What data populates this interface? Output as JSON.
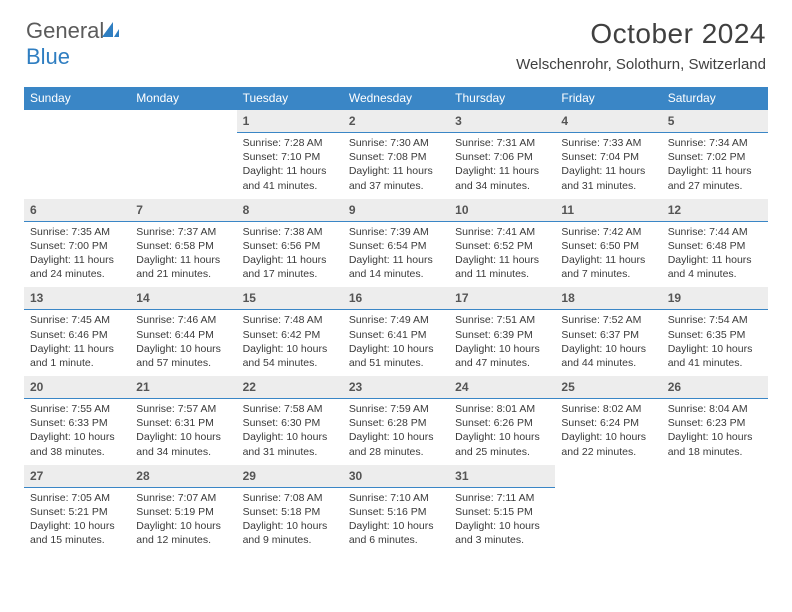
{
  "logo": {
    "text_general": "General",
    "text_blue": "Blue"
  },
  "title": "October 2024",
  "location": "Welschenrohr, Solothurn, Switzerland",
  "colors": {
    "header_bg": "#3a86c6",
    "header_text": "#ffffff",
    "daynum_bg": "#ededed",
    "daynum_border": "#3a86c6",
    "body_text": "#3a3a3a",
    "logo_gray": "#5b5b5b",
    "logo_blue": "#2f7ec1",
    "page_bg": "#ffffff"
  },
  "day_names": [
    "Sunday",
    "Monday",
    "Tuesday",
    "Wednesday",
    "Thursday",
    "Friday",
    "Saturday"
  ],
  "weeks": [
    [
      null,
      null,
      {
        "n": "1",
        "sr": "Sunrise: 7:28 AM",
        "ss": "Sunset: 7:10 PM",
        "dl": "Daylight: 11 hours and 41 minutes."
      },
      {
        "n": "2",
        "sr": "Sunrise: 7:30 AM",
        "ss": "Sunset: 7:08 PM",
        "dl": "Daylight: 11 hours and 37 minutes."
      },
      {
        "n": "3",
        "sr": "Sunrise: 7:31 AM",
        "ss": "Sunset: 7:06 PM",
        "dl": "Daylight: 11 hours and 34 minutes."
      },
      {
        "n": "4",
        "sr": "Sunrise: 7:33 AM",
        "ss": "Sunset: 7:04 PM",
        "dl": "Daylight: 11 hours and 31 minutes."
      },
      {
        "n": "5",
        "sr": "Sunrise: 7:34 AM",
        "ss": "Sunset: 7:02 PM",
        "dl": "Daylight: 11 hours and 27 minutes."
      }
    ],
    [
      {
        "n": "6",
        "sr": "Sunrise: 7:35 AM",
        "ss": "Sunset: 7:00 PM",
        "dl": "Daylight: 11 hours and 24 minutes."
      },
      {
        "n": "7",
        "sr": "Sunrise: 7:37 AM",
        "ss": "Sunset: 6:58 PM",
        "dl": "Daylight: 11 hours and 21 minutes."
      },
      {
        "n": "8",
        "sr": "Sunrise: 7:38 AM",
        "ss": "Sunset: 6:56 PM",
        "dl": "Daylight: 11 hours and 17 minutes."
      },
      {
        "n": "9",
        "sr": "Sunrise: 7:39 AM",
        "ss": "Sunset: 6:54 PM",
        "dl": "Daylight: 11 hours and 14 minutes."
      },
      {
        "n": "10",
        "sr": "Sunrise: 7:41 AM",
        "ss": "Sunset: 6:52 PM",
        "dl": "Daylight: 11 hours and 11 minutes."
      },
      {
        "n": "11",
        "sr": "Sunrise: 7:42 AM",
        "ss": "Sunset: 6:50 PM",
        "dl": "Daylight: 11 hours and 7 minutes."
      },
      {
        "n": "12",
        "sr": "Sunrise: 7:44 AM",
        "ss": "Sunset: 6:48 PM",
        "dl": "Daylight: 11 hours and 4 minutes."
      }
    ],
    [
      {
        "n": "13",
        "sr": "Sunrise: 7:45 AM",
        "ss": "Sunset: 6:46 PM",
        "dl": "Daylight: 11 hours and 1 minute."
      },
      {
        "n": "14",
        "sr": "Sunrise: 7:46 AM",
        "ss": "Sunset: 6:44 PM",
        "dl": "Daylight: 10 hours and 57 minutes."
      },
      {
        "n": "15",
        "sr": "Sunrise: 7:48 AM",
        "ss": "Sunset: 6:42 PM",
        "dl": "Daylight: 10 hours and 54 minutes."
      },
      {
        "n": "16",
        "sr": "Sunrise: 7:49 AM",
        "ss": "Sunset: 6:41 PM",
        "dl": "Daylight: 10 hours and 51 minutes."
      },
      {
        "n": "17",
        "sr": "Sunrise: 7:51 AM",
        "ss": "Sunset: 6:39 PM",
        "dl": "Daylight: 10 hours and 47 minutes."
      },
      {
        "n": "18",
        "sr": "Sunrise: 7:52 AM",
        "ss": "Sunset: 6:37 PM",
        "dl": "Daylight: 10 hours and 44 minutes."
      },
      {
        "n": "19",
        "sr": "Sunrise: 7:54 AM",
        "ss": "Sunset: 6:35 PM",
        "dl": "Daylight: 10 hours and 41 minutes."
      }
    ],
    [
      {
        "n": "20",
        "sr": "Sunrise: 7:55 AM",
        "ss": "Sunset: 6:33 PM",
        "dl": "Daylight: 10 hours and 38 minutes."
      },
      {
        "n": "21",
        "sr": "Sunrise: 7:57 AM",
        "ss": "Sunset: 6:31 PM",
        "dl": "Daylight: 10 hours and 34 minutes."
      },
      {
        "n": "22",
        "sr": "Sunrise: 7:58 AM",
        "ss": "Sunset: 6:30 PM",
        "dl": "Daylight: 10 hours and 31 minutes."
      },
      {
        "n": "23",
        "sr": "Sunrise: 7:59 AM",
        "ss": "Sunset: 6:28 PM",
        "dl": "Daylight: 10 hours and 28 minutes."
      },
      {
        "n": "24",
        "sr": "Sunrise: 8:01 AM",
        "ss": "Sunset: 6:26 PM",
        "dl": "Daylight: 10 hours and 25 minutes."
      },
      {
        "n": "25",
        "sr": "Sunrise: 8:02 AM",
        "ss": "Sunset: 6:24 PM",
        "dl": "Daylight: 10 hours and 22 minutes."
      },
      {
        "n": "26",
        "sr": "Sunrise: 8:04 AM",
        "ss": "Sunset: 6:23 PM",
        "dl": "Daylight: 10 hours and 18 minutes."
      }
    ],
    [
      {
        "n": "27",
        "sr": "Sunrise: 7:05 AM",
        "ss": "Sunset: 5:21 PM",
        "dl": "Daylight: 10 hours and 15 minutes."
      },
      {
        "n": "28",
        "sr": "Sunrise: 7:07 AM",
        "ss": "Sunset: 5:19 PM",
        "dl": "Daylight: 10 hours and 12 minutes."
      },
      {
        "n": "29",
        "sr": "Sunrise: 7:08 AM",
        "ss": "Sunset: 5:18 PM",
        "dl": "Daylight: 10 hours and 9 minutes."
      },
      {
        "n": "30",
        "sr": "Sunrise: 7:10 AM",
        "ss": "Sunset: 5:16 PM",
        "dl": "Daylight: 10 hours and 6 minutes."
      },
      {
        "n": "31",
        "sr": "Sunrise: 7:11 AM",
        "ss": "Sunset: 5:15 PM",
        "dl": "Daylight: 10 hours and 3 minutes."
      },
      null,
      null
    ]
  ]
}
